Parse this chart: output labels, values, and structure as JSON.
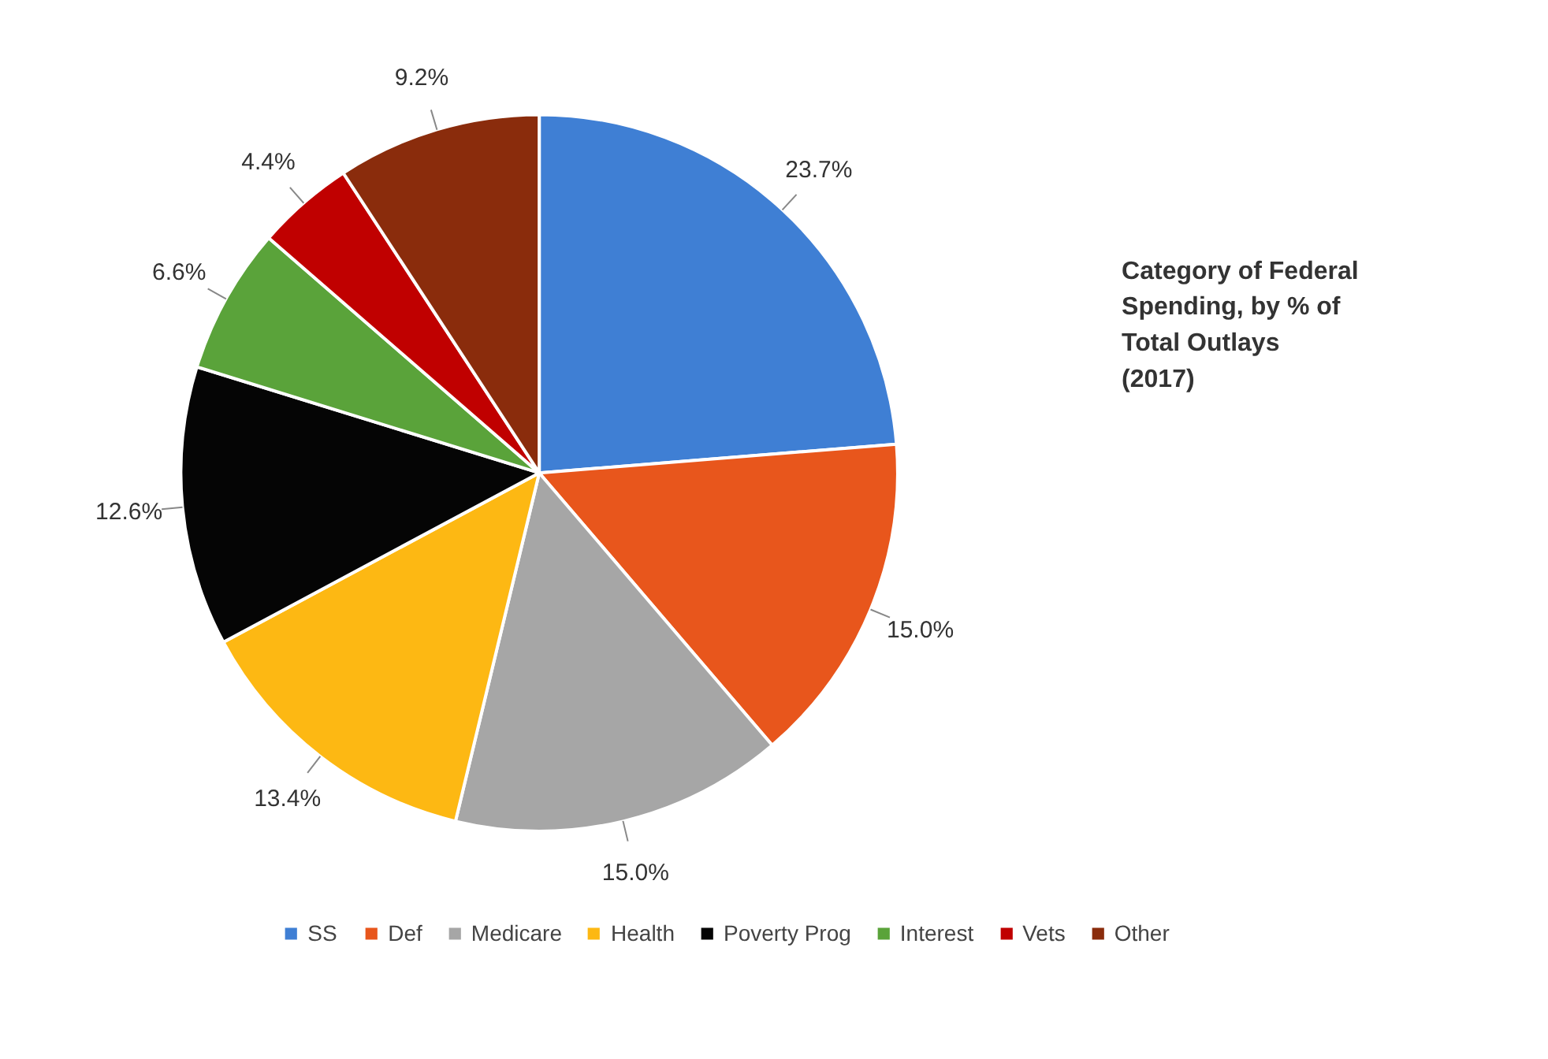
{
  "chart_data": {
    "type": "pie",
    "title": "Category of Federal\nSpending, by % of\nTotal Outlays\n(2017)",
    "categories": [
      "SS",
      "Def",
      "Medicare",
      "Health",
      "Poverty Prog",
      "Interest",
      "Vets",
      "Other"
    ],
    "values": [
      23.7,
      15.0,
      15.0,
      13.4,
      12.6,
      6.6,
      4.4,
      9.2
    ],
    "value_labels": [
      "23.7%",
      "15.0%",
      "15.0%",
      "13.4%",
      "12.6%",
      "6.6%",
      "4.4%",
      "9.2%"
    ],
    "colors": [
      "#3f7fd4",
      "#e8561c",
      "#a6a6a6",
      "#fdb813",
      "#050505",
      "#5aa33a",
      "#c00000",
      "#8a2c0c"
    ],
    "legend": "bottom"
  }
}
